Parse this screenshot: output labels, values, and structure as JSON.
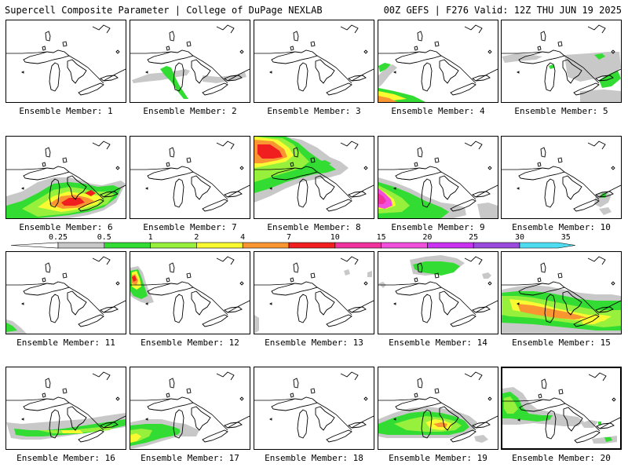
{
  "header": {
    "title_left": "Supercell Composite Parameter | College of DuPage NEXLAB",
    "title_right": "00Z GEFS | F276 Valid: 12Z THU JUN 19 2025"
  },
  "colorbar": {
    "labels": [
      "0.25",
      "0.5",
      "1",
      "2",
      "4",
      "7",
      "10",
      "15",
      "20",
      "25",
      "30",
      "35"
    ],
    "colors": [
      "#c8c8c8",
      "#32dc32",
      "#96f03c",
      "#fafa32",
      "#fa9632",
      "#f01e1e",
      "#f0329c",
      "#f050dc",
      "#c832f0",
      "#9b4bdc",
      "#50dcf0"
    ]
  },
  "members": [
    {
      "label": "Ensemble Member: 1"
    },
    {
      "label": "Ensemble Member: 2"
    },
    {
      "label": "Ensemble Member: 3"
    },
    {
      "label": "Ensemble Member: 4"
    },
    {
      "label": "Ensemble Member: 5"
    },
    {
      "label": "Ensemble Member: 6"
    },
    {
      "label": "Ensemble Member: 7"
    },
    {
      "label": "Ensemble Member: 8"
    },
    {
      "label": "Ensemble Member: 9"
    },
    {
      "label": "Ensemble Member: 10"
    },
    {
      "label": "Ensemble Member: 11"
    },
    {
      "label": "Ensemble Member: 12"
    },
    {
      "label": "Ensemble Member: 13"
    },
    {
      "label": "Ensemble Member: 14"
    },
    {
      "label": "Ensemble Member: 15"
    },
    {
      "label": "Ensemble Member: 16"
    },
    {
      "label": "Ensemble Member: 17"
    },
    {
      "label": "Ensemble Member: 18"
    },
    {
      "label": "Ensemble Member: 19"
    },
    {
      "label": "Ensemble Member: 20"
    }
  ]
}
